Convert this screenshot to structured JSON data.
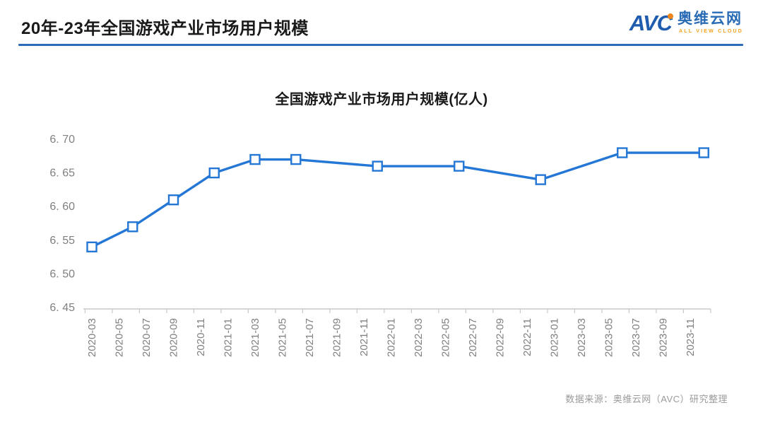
{
  "header": {
    "title": "20年-23年全国游戏产业市场用户规模",
    "logo": {
      "acronym": "AVC",
      "name_cn": "奥维云网",
      "name_en": "ALL VIEW CLOUD",
      "blue": "#1f5cae",
      "orange": "#f08519"
    }
  },
  "chart_data": {
    "type": "line",
    "title": "全国游戏产业市场用户规模(亿人)",
    "x_tick_labels": [
      "2020-03",
      "2020-05",
      "2020-07",
      "2020-09",
      "2020-11",
      "2021-01",
      "2021-03",
      "2021-05",
      "2021-07",
      "2021-09",
      "2021-11",
      "2022-01",
      "2022-03",
      "2022-05",
      "2022-07",
      "2022-09",
      "2022-11",
      "2023-01",
      "2023-03",
      "2023-05",
      "2023-07",
      "2023-09",
      "2023-11"
    ],
    "series": [
      {
        "name": "全国游戏产业市场用户规模",
        "points": [
          {
            "month": "2020-03",
            "value": 6.54
          },
          {
            "month": "2020-06",
            "value": 6.57
          },
          {
            "month": "2020-09",
            "value": 6.61
          },
          {
            "month": "2020-12",
            "value": 6.65
          },
          {
            "month": "2021-03",
            "value": 6.67
          },
          {
            "month": "2021-06",
            "value": 6.67
          },
          {
            "month": "2021-12",
            "value": 6.66
          },
          {
            "month": "2022-06",
            "value": 6.66
          },
          {
            "month": "2022-12",
            "value": 6.64
          },
          {
            "month": "2023-06",
            "value": 6.68
          },
          {
            "month": "2023-12",
            "value": 6.68
          }
        ]
      }
    ],
    "ylim": [
      6.45,
      6.7
    ],
    "y_tick_step": 0.05,
    "y_tick_labels": [
      "6. 45",
      "6. 50",
      "6. 55",
      "6. 60",
      "6. 65",
      "6. 70"
    ],
    "grid": false,
    "legend": "none",
    "line_color": "#2577d6",
    "marker": "open-square",
    "marker_fill": "#ffffff",
    "axis_color": "#c9c9c9",
    "tick_label_color": "#808080"
  },
  "footer": {
    "source": "数据来源：奥维云网（AVC）研究整理"
  }
}
